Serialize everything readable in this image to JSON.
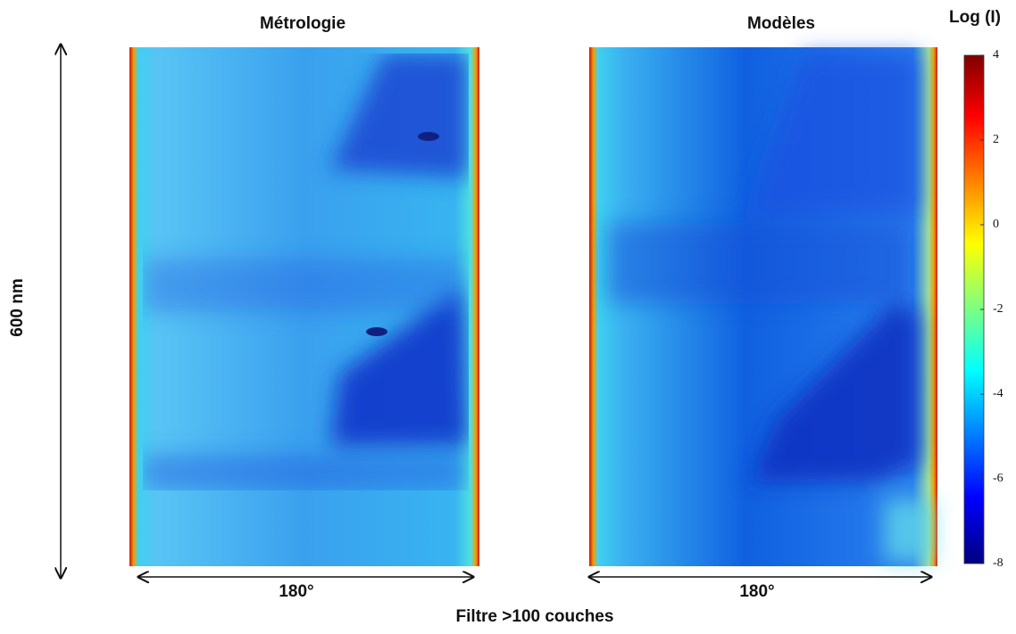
{
  "chart_data": {
    "type": "heatmap",
    "panels": [
      {
        "title": "Métrologie",
        "xlabel": "180°"
      },
      {
        "title": "Modèles",
        "xlabel": "180°"
      }
    ],
    "ylabel": "600 nm",
    "xlabel": "Filtre >100 couches",
    "colorbar": {
      "title": "Log (I)",
      "lim": [
        -8,
        4
      ],
      "ticks": [
        4,
        2,
        0,
        -2,
        -4,
        -6,
        -8
      ]
    }
  }
}
